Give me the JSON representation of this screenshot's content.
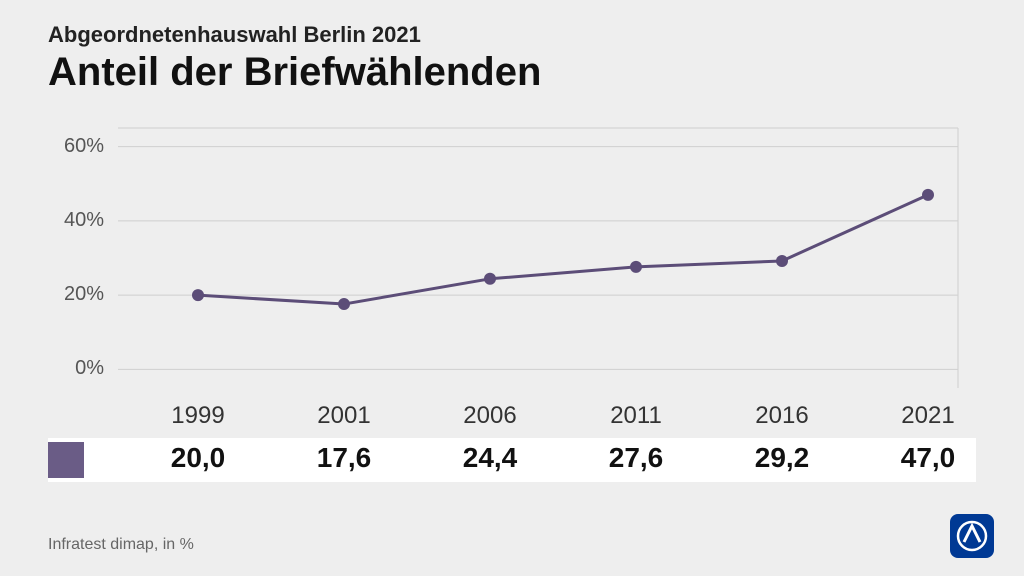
{
  "header": {
    "supertitle": "Abgeordnetenhauswahl Berlin 2021",
    "title": "Anteil der Briefwählenden"
  },
  "chart": {
    "type": "line",
    "years": [
      "1999",
      "2001",
      "2006",
      "2011",
      "2016",
      "2021"
    ],
    "values_display": [
      "20,0",
      "17,6",
      "24,4",
      "27,6",
      "29,2",
      "47,0"
    ],
    "values": [
      20.0,
      17.6,
      24.4,
      27.6,
      29.2,
      47.0
    ],
    "yticks": [
      0,
      20,
      40,
      60
    ],
    "ytick_labels": [
      "0%",
      "20%",
      "40%",
      "60%"
    ],
    "ylim": [
      -5,
      65
    ],
    "line_color": "#5c4d78",
    "marker_color": "#5c4d78",
    "grid_color": "#cfcfcf",
    "axis_color": "#bbbbbb",
    "line_width": 3,
    "marker_radius": 6,
    "plot_bg": "#eeeeee",
    "legend_swatch_color": "#6a5c86",
    "strip_bg": "#ffffff"
  },
  "footer": {
    "source": "Infratest dimap, in %"
  },
  "logo": {
    "bg": "#003994",
    "ring": "#ffffff",
    "inner_shadow": "#0a2d6b"
  }
}
